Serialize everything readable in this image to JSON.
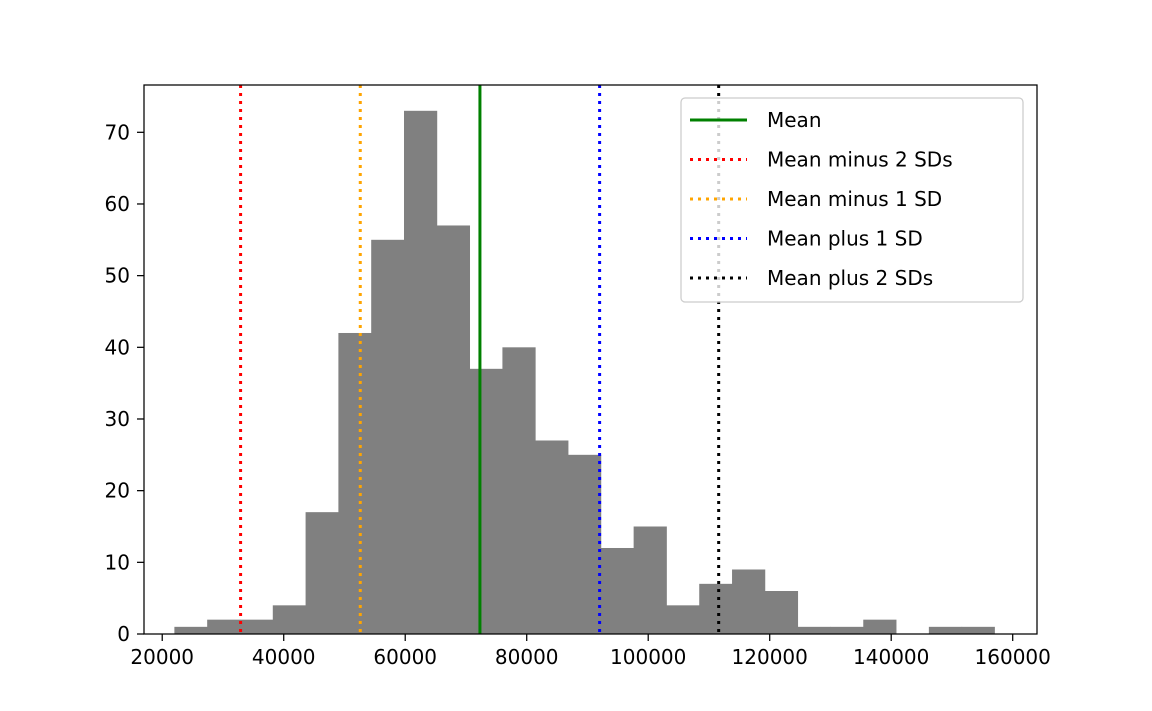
{
  "chart_data": {
    "type": "bar",
    "title": "",
    "xlabel": "",
    "ylabel": "",
    "xlim": [
      17000,
      164000
    ],
    "ylim": [
      0,
      76.6
    ],
    "xticks": [
      20000,
      40000,
      60000,
      80000,
      100000,
      120000,
      140000,
      160000
    ],
    "yticks": [
      0,
      10,
      20,
      30,
      40,
      50,
      60,
      70
    ],
    "bin_edges": [
      22000,
      27400,
      32800,
      38200,
      43600,
      49000,
      54400,
      59800,
      65200,
      70600,
      76000,
      81400,
      86800,
      92200,
      97600,
      103000,
      108400,
      113800,
      119200,
      124600,
      130000,
      135400,
      140800,
      146200,
      151600,
      157000
    ],
    "counts": [
      1,
      2,
      2,
      4,
      17,
      42,
      55,
      73,
      57,
      37,
      40,
      27,
      25,
      12,
      15,
      4,
      7,
      9,
      6,
      1,
      1,
      2,
      0,
      1,
      1
    ],
    "bar_color": "#808080",
    "grid": false,
    "legend_position": "upper right",
    "reference_lines": [
      {
        "name": "Mean",
        "x": 72300,
        "color": "#008000",
        "style": "solid"
      },
      {
        "name": "Mean minus 2 SDs",
        "x": 32900,
        "color": "#ff0000",
        "style": "dotted"
      },
      {
        "name": "Mean minus 1 SD",
        "x": 52600,
        "color": "#ffa500",
        "style": "dotted"
      },
      {
        "name": "Mean plus 1 SD",
        "x": 92000,
        "color": "#0000ff",
        "style": "dotted"
      },
      {
        "name": "Mean plus 2 SDs",
        "x": 111600,
        "color": "#000000",
        "style": "dotted"
      }
    ]
  }
}
